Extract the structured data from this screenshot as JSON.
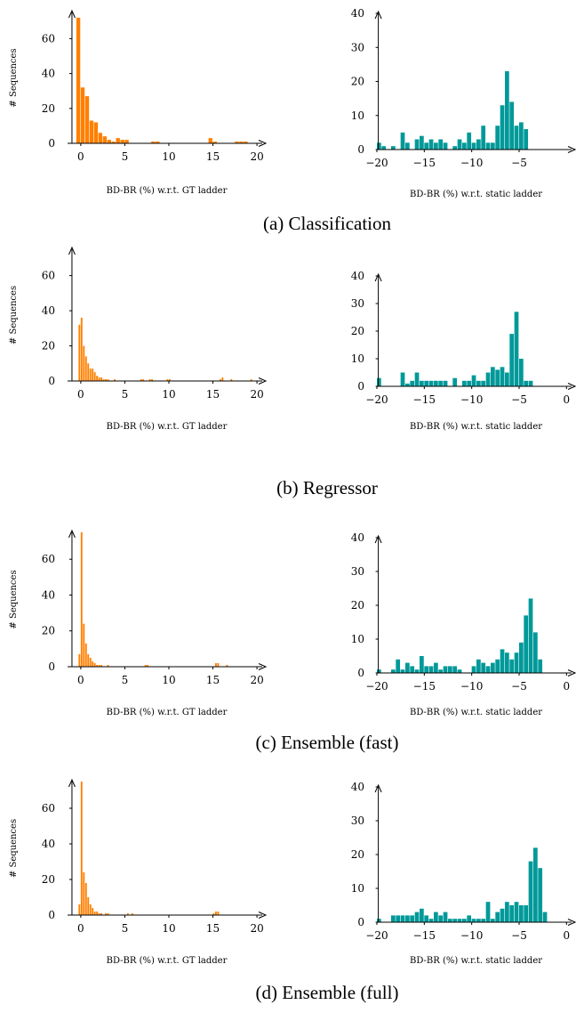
{
  "chart_data": [
    {
      "panel": "a",
      "side": "left",
      "type": "bar",
      "bin_width": 0.5,
      "x_start": -0.5,
      "values": [
        72,
        32,
        27,
        13,
        12,
        6,
        4,
        2,
        1,
        3,
        2,
        2,
        0,
        0,
        0,
        0,
        0,
        1,
        1,
        0,
        0,
        0,
        0,
        0,
        0,
        0,
        0,
        0,
        0,
        0,
        3,
        1,
        0,
        0,
        0,
        0,
        1,
        1,
        1
      ],
      "xlabel": "BD-BR (%) w.r.t. GT ladder",
      "ylabel": "# Sequences",
      "xlim": [
        -1.5,
        21
      ],
      "ylim": [
        0,
        75
      ],
      "xticks": [
        0,
        5,
        10,
        15,
        20
      ],
      "yticks": [
        0,
        20,
        40,
        60
      ],
      "color": "#ff8000",
      "grid": false
    },
    {
      "panel": "a",
      "side": "right",
      "type": "bar",
      "bin_width": 0.5,
      "x_start": -20,
      "values": [
        2,
        1,
        0,
        1,
        0,
        5,
        2,
        0,
        3,
        4,
        2,
        3,
        2,
        3,
        2,
        0,
        1,
        3,
        2,
        5,
        2,
        3,
        7,
        2,
        2,
        7,
        13,
        23,
        14,
        7,
        8,
        6
      ],
      "xlabel": "BD-BR (%) w.r.t. static ladder",
      "ylabel": "",
      "xlim": [
        -20,
        1
      ],
      "ylim": [
        0,
        40
      ],
      "xticks": [
        -20,
        -15,
        -10,
        -5
      ],
      "yticks": [
        0,
        10,
        20,
        30,
        40
      ],
      "color": "#009999",
      "grid": false
    },
    {
      "panel": "b",
      "side": "left",
      "type": "bar",
      "bin_width": 0.25,
      "x_start": -0.25,
      "values": [
        32,
        36,
        20,
        14,
        10,
        7,
        7,
        5,
        3,
        2,
        2,
        1,
        1,
        1,
        0,
        0,
        1,
        0,
        0,
        0,
        0,
        0,
        0,
        0,
        0,
        0,
        0,
        0,
        1,
        1,
        0,
        0,
        1,
        1,
        0,
        0,
        0,
        0,
        0,
        0,
        1,
        1,
        0,
        0,
        0,
        0,
        0,
        0,
        0,
        0,
        0,
        0,
        0,
        0,
        0,
        0,
        0,
        0,
        0,
        0,
        0,
        0,
        0,
        0,
        1,
        2,
        0,
        0,
        0,
        1,
        0,
        0,
        0,
        0,
        0,
        0,
        0,
        0,
        1
      ],
      "xlabel": "BD-BR (%) w.r.t. GT ladder",
      "ylabel": "# Sequences",
      "xlim": [
        -1.5,
        21
      ],
      "ylim": [
        0,
        75
      ],
      "xticks": [
        0,
        5,
        10,
        15,
        20
      ],
      "yticks": [
        0,
        20,
        40,
        60
      ],
      "color": "#ff8000",
      "grid": false
    },
    {
      "panel": "b",
      "side": "right",
      "type": "bar",
      "bin_width": 0.5,
      "x_start": -20,
      "values": [
        3,
        0,
        0,
        0,
        0,
        5,
        1,
        2,
        5,
        2,
        2,
        2,
        2,
        2,
        2,
        0,
        3,
        0,
        2,
        2,
        4,
        2,
        2,
        5,
        7,
        6,
        7,
        5,
        19,
        27,
        10,
        2,
        2
      ],
      "xlabel": "BD-BR (%) w.r.t. static ladder",
      "ylabel": "",
      "xlim": [
        -20,
        1
      ],
      "ylim": [
        0,
        40
      ],
      "xticks": [
        -20,
        -15,
        -10,
        -5,
        0
      ],
      "yticks": [
        0,
        10,
        20,
        30,
        40
      ],
      "color": "#009999",
      "grid": false
    },
    {
      "panel": "c",
      "side": "left",
      "type": "bar",
      "bin_width": 0.25,
      "x_start": -0.25,
      "values": [
        7,
        75,
        24,
        13,
        7,
        5,
        3,
        2,
        1,
        1,
        1,
        0,
        0,
        1,
        0,
        0,
        0,
        0,
        0,
        0,
        0,
        0,
        0,
        0,
        0,
        0,
        0,
        0,
        0,
        0,
        1,
        1,
        0,
        0,
        0,
        0,
        0,
        0,
        0,
        0,
        0,
        0,
        0,
        0,
        0,
        0,
        0,
        0,
        0,
        0,
        0,
        0,
        0,
        0,
        0,
        0,
        0,
        0,
        0,
        0,
        0,
        0,
        2,
        2,
        0,
        0,
        0,
        1
      ],
      "xlabel": "BD-BR (%) w.r.t. GT ladder",
      "ylabel": "# Sequences",
      "xlim": [
        -1.5,
        21
      ],
      "ylim": [
        0,
        75
      ],
      "xticks": [
        0,
        5,
        10,
        15,
        20
      ],
      "yticks": [
        0,
        20,
        40,
        60
      ],
      "color": "#ff8000",
      "grid": false
    },
    {
      "panel": "c",
      "side": "right",
      "type": "bar",
      "bin_width": 0.5,
      "x_start": -20,
      "values": [
        1,
        0,
        0,
        1,
        4,
        1,
        3,
        2,
        1,
        5,
        2,
        2,
        3,
        1,
        2,
        2,
        2,
        1,
        0,
        0,
        2,
        4,
        3,
        2,
        3,
        4,
        7,
        6,
        4,
        6,
        9,
        17,
        22,
        12,
        4
      ],
      "xlabel": "BD-BR (%) w.r.t. static ladder",
      "ylabel": "",
      "xlim": [
        -20,
        1
      ],
      "ylim": [
        0,
        40
      ],
      "xticks": [
        -20,
        -15,
        -10,
        -5,
        0
      ],
      "yticks": [
        0,
        10,
        20,
        30,
        40
      ],
      "color": "#009999",
      "grid": false
    },
    {
      "panel": "d",
      "side": "left",
      "type": "bar",
      "bin_width": 0.25,
      "x_start": -0.25,
      "values": [
        6,
        75,
        24,
        18,
        10,
        6,
        4,
        2,
        2,
        1,
        1,
        0,
        1,
        1,
        0,
        0,
        0,
        0,
        0,
        0,
        0,
        0,
        1,
        0,
        1,
        0,
        0,
        0,
        0,
        0,
        0,
        0,
        0,
        0,
        0,
        0,
        0,
        0,
        0,
        0,
        0,
        0,
        0,
        0,
        0,
        0,
        0,
        0,
        0,
        0,
        0,
        0,
        0,
        0,
        0,
        0,
        0,
        0,
        0,
        0,
        0,
        1,
        2,
        2
      ],
      "xlabel": "BD-BR (%) w.r.t. GT ladder",
      "ylabel": "# Sequences",
      "xlim": [
        -1.5,
        21
      ],
      "ylim": [
        0,
        75
      ],
      "xticks": [
        0,
        5,
        10,
        15,
        20
      ],
      "yticks": [
        0,
        20,
        40,
        60
      ],
      "color": "#ff8000",
      "grid": false
    },
    {
      "panel": "d",
      "side": "right",
      "type": "bar",
      "bin_width": 0.5,
      "x_start": -20,
      "values": [
        1,
        0,
        0,
        2,
        2,
        2,
        2,
        2,
        3,
        4,
        2,
        1,
        3,
        2,
        3,
        1,
        1,
        1,
        1,
        2,
        1,
        1,
        1,
        6,
        1,
        3,
        4,
        6,
        5,
        6,
        5,
        5,
        18,
        22,
        16,
        3
      ],
      "xlabel": "BD-BR (%) w.r.t. static ladder",
      "ylabel": "",
      "xlim": [
        -20,
        1
      ],
      "ylim": [
        0,
        40
      ],
      "xticks": [
        -20,
        -15,
        -10,
        -5,
        0
      ],
      "yticks": [
        0,
        10,
        20,
        30,
        40
      ],
      "color": "#009999",
      "grid": false
    }
  ],
  "captions": {
    "a": "(a) Classification",
    "b": "(b) Regressor",
    "c": "(c) Ensemble (fast)",
    "d": "(d) Ensemble (full)"
  }
}
